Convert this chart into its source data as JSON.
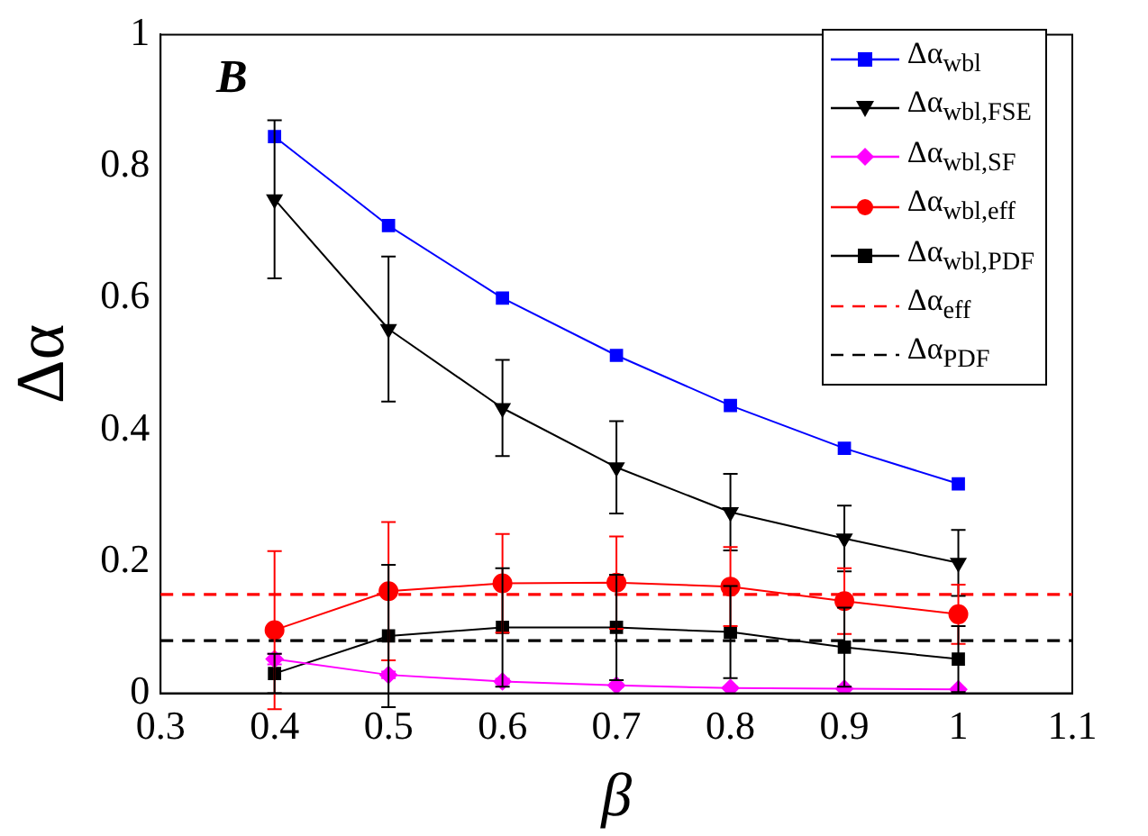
{
  "chart_data": {
    "type": "line",
    "xlabel": "β",
    "ylabel": "Δα",
    "annotations": [
      "B"
    ],
    "x": [
      0.4,
      0.5,
      0.6,
      0.7,
      0.8,
      0.9,
      1
    ],
    "xlim": [
      0.3,
      1.1
    ],
    "xticks": [
      0.3,
      0.4,
      0.5,
      0.6,
      0.7,
      0.8,
      0.9,
      1,
      1.1
    ],
    "ylim": [
      0,
      1
    ],
    "yticks": [
      0,
      0.2,
      0.4,
      0.6,
      0.8,
      1
    ],
    "grid": false,
    "legend": "top right",
    "line_style": "solid",
    "series": [
      {
        "name": "Δα$_{wbl}$",
        "color": "#0000ff",
        "marker": "square",
        "values": [
          0.845,
          0.71,
          0.6,
          0.513,
          0.437,
          0.372,
          0.318
        ]
      },
      {
        "name": "Δα$_{wbl,FSE}$",
        "color": "#000000",
        "marker": "triangle",
        "values": [
          0.75,
          0.553,
          0.433,
          0.343,
          0.275,
          0.235,
          0.198
        ],
        "errors": [
          0.12,
          0.11,
          0.073,
          0.07,
          0.058,
          0.05,
          0.05
        ]
      },
      {
        "name": "Δα$_{wbl,SF}$",
        "color": "#ff00ff",
        "marker": "diamond",
        "values": [
          0.052,
          0.028,
          0.018,
          0.012,
          0.008,
          0.007,
          0.006
        ],
        "errors": [
          0.008,
          0.005,
          0.004,
          0.003,
          0.002,
          0.002,
          0.002
        ]
      },
      {
        "name": "Δα$_{wbl,eff}$",
        "color": "#ff0000",
        "marker": "circle",
        "values": [
          0.096,
          0.155,
          0.167,
          0.168,
          0.162,
          0.14,
          0.12
        ],
        "errors": [
          0.12,
          0.105,
          0.075,
          0.07,
          0.06,
          0.05,
          0.045
        ]
      },
      {
        "name": "Δα$_{wbl,PDF}$",
        "color": "#000000",
        "marker": "square",
        "values": [
          0.03,
          0.087,
          0.1,
          0.1,
          0.093,
          0.07,
          0.052
        ],
        "errors": [
          0.03,
          0.108,
          0.09,
          0.08,
          0.07,
          0.06,
          0.05
        ]
      }
    ],
    "ref_lines": [
      {
        "axis": "y",
        "value": 0.15,
        "label": "Δα$_{eff}$",
        "color": "#ff0000",
        "line_style": "dashed"
      },
      {
        "axis": "y",
        "value": 0.08,
        "label": "Δα$_{PDF}$",
        "color": "#000000",
        "line_style": "dashed"
      }
    ]
  }
}
